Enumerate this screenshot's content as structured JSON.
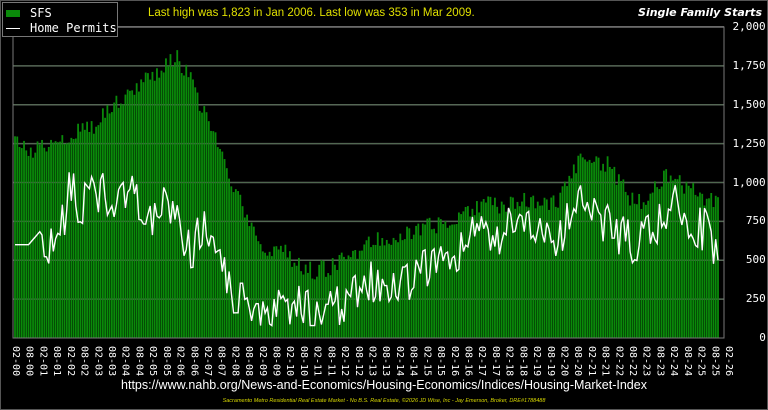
{
  "legend": {
    "items": [
      {
        "label": "SFS",
        "type": "bar",
        "color": "#0a8a0a"
      },
      {
        "label": "Home Permits",
        "type": "line",
        "color": "#ffffff"
      }
    ]
  },
  "header": {
    "note": "Last high was 1,823 in Jan 2006. Last low was 353 in Mar 2009.",
    "title": "Single Family Starts"
  },
  "footer": {
    "source_url": "https://www.nahb.org/News-and-Economics/Housing-Economics/Indices/Housing-Market-Index",
    "credit": "Sacramento Metro Residential Real Estate Market - No B.S. Real Estate, ©2026 JD Wise, Inc - Jay Emerson, Broker, DRE#1788488"
  },
  "chart_data": {
    "type": "bar+line",
    "title": "Single Family Starts",
    "annotation": "Last high was 1,823 in Jan 2006. Last low was 353 in Mar 2009.",
    "xlabel": "",
    "ylabel": "",
    "ylim": [
      0,
      2000
    ],
    "yticks": [
      "0",
      "250",
      "500",
      "750",
      "1,000",
      "1,250",
      "1,500",
      "1,750",
      "2,000"
    ],
    "ytick_values": [
      0,
      250,
      500,
      750,
      1000,
      1250,
      1500,
      1750,
      2000
    ],
    "y_axis_position": "right",
    "grid": true,
    "legend_position": "top-left",
    "xticks": [
      "02-00",
      "08-00",
      "02-01",
      "08-01",
      "02-02",
      "08-02",
      "02-03",
      "08-03",
      "02-04",
      "08-04",
      "02-05",
      "08-05",
      "02-06",
      "08-06",
      "02-07",
      "08-07",
      "02-08",
      "08-08",
      "02-09",
      "08-09",
      "02-10",
      "08-10",
      "02-11",
      "08-11",
      "02-12",
      "08-12",
      "02-13",
      "08-13",
      "02-14",
      "08-14",
      "02-15",
      "08-15",
      "02-16",
      "08-16",
      "02-17",
      "08-17",
      "02-18",
      "08-18",
      "02-19",
      "08-19",
      "02-20",
      "08-20",
      "02-21",
      "08-21",
      "02-22",
      "08-22",
      "02-23",
      "08-23",
      "02-24",
      "08-24",
      "02-25",
      "08-25",
      "02-26"
    ],
    "series": [
      {
        "name": "SFS",
        "type": "bar",
        "color": "#0a8a0a",
        "values_by_half_year": [
          1260,
          1200,
          1230,
          1290,
          1300,
          1340,
          1380,
          1480,
          1560,
          1620,
          1690,
          1740,
          1800,
          1650,
          1450,
          1230,
          1000,
          800,
          600,
          560,
          560,
          460,
          430,
          450,
          480,
          540,
          620,
          640,
          660,
          680,
          700,
          720,
          750,
          790,
          830,
          860,
          850,
          880,
          880,
          900,
          860,
          1000,
          1170,
          1130,
          1110,
          960,
          860,
          900,
          1050,
          1000,
          960,
          900,
          880
        ]
      },
      {
        "name": "Home Permits",
        "type": "line",
        "color": "#ffffff",
        "values_by_half_year": [
          600,
          600,
          700,
          500,
          950,
          850,
          950,
          880,
          1000,
          880,
          780,
          820,
          780,
          550,
          700,
          520,
          280,
          300,
          220,
          200,
          170,
          220,
          150,
          220,
          200,
          320,
          350,
          330,
          380,
          360,
          450,
          480,
          500,
          560,
          800,
          600,
          650,
          800,
          700,
          740,
          600,
          800,
          900,
          780,
          760,
          650,
          570,
          700,
          780,
          900,
          720,
          700,
          540
        ]
      }
    ],
    "extremes": {
      "high": {
        "value": 1823,
        "date": "Jan 2006"
      },
      "low": {
        "value": 353,
        "date": "Mar 2009"
      }
    }
  }
}
